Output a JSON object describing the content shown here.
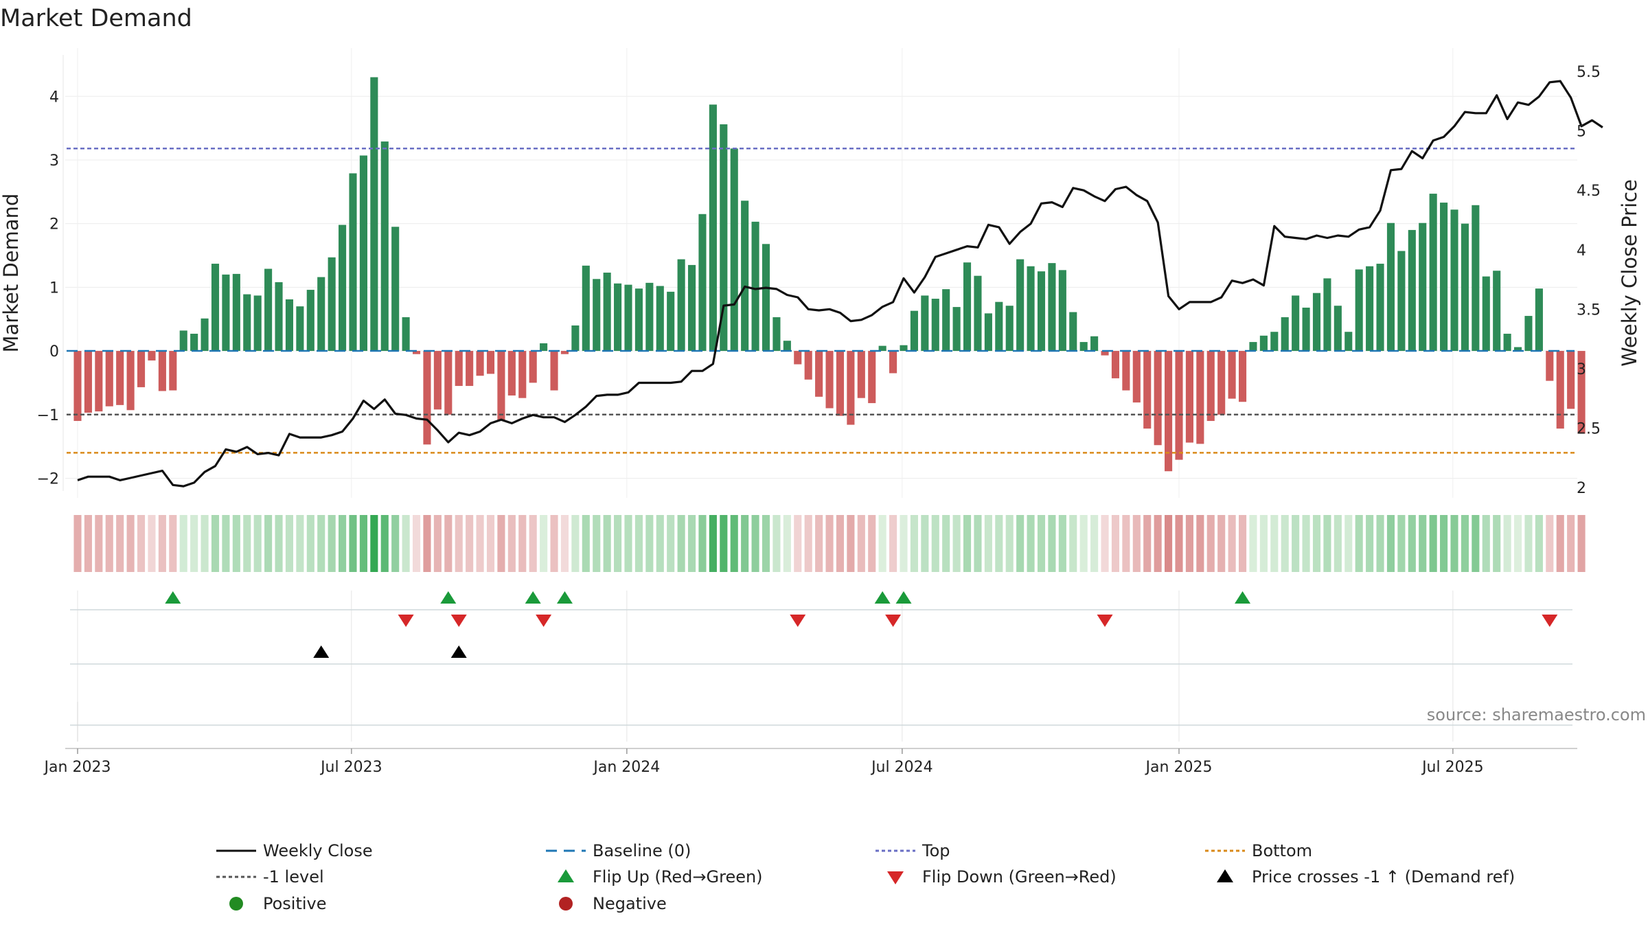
{
  "chart_data": {
    "type": "bar",
    "title": "Market Demand",
    "ylabel": "Market Demand",
    "y2label": "Weekly Close Price",
    "ylim": [
      -2.2,
      4.65
    ],
    "y2lim": [
      1.97,
      5.64
    ],
    "yticks": [
      -2,
      -1,
      0,
      1,
      2,
      3,
      4
    ],
    "y2ticks": [
      2,
      2.5,
      3,
      3.5,
      4,
      4.5,
      5,
      5.5
    ],
    "x_tick_labels": [
      "Jan 2023",
      "Jul 2023",
      "Jan 2024",
      "Jul 2024",
      "Jan 2025",
      "Jul 2025"
    ],
    "x_tick_weeks": [
      0,
      25.86,
      51.86,
      77.86,
      104,
      129.86
    ],
    "levels": {
      "top": 3.18,
      "minus_one": -1.0,
      "bottom": -1.6,
      "baseline": 0
    },
    "series": [
      {
        "name": "Market Demand",
        "kind": "bar",
        "values": [
          -1.1,
          -0.97,
          -0.95,
          -0.87,
          -0.85,
          -0.93,
          -0.57,
          -0.15,
          -0.63,
          -0.62,
          0.32,
          0.27,
          0.51,
          1.37,
          1.2,
          1.21,
          0.89,
          0.87,
          1.29,
          1.08,
          0.81,
          0.7,
          0.96,
          1.16,
          1.47,
          1.98,
          2.79,
          3.07,
          4.3,
          3.29,
          1.95,
          0.53,
          -0.05,
          -1.47,
          -0.92,
          -1.0,
          -0.55,
          -0.55,
          -0.39,
          -0.36,
          -1.09,
          -0.7,
          -0.74,
          -0.5,
          0.12,
          -0.62,
          -0.05,
          0.4,
          1.34,
          1.13,
          1.23,
          1.06,
          1.04,
          0.98,
          1.07,
          1.02,
          0.93,
          1.44,
          1.35,
          2.15,
          3.87,
          3.56,
          3.18,
          2.36,
          2.03,
          1.68,
          0.53,
          0.16,
          -0.21,
          -0.45,
          -0.72,
          -0.9,
          -1.02,
          -1.16,
          -0.74,
          -0.82,
          0.08,
          -0.35,
          0.09,
          0.63,
          0.87,
          0.82,
          0.97,
          0.69,
          1.39,
          1.18,
          0.59,
          0.77,
          0.71,
          1.44,
          1.33,
          1.25,
          1.38,
          1.27,
          0.61,
          0.14,
          0.23,
          -0.07,
          -0.43,
          -0.62,
          -0.81,
          -1.22,
          -1.48,
          -1.89,
          -1.71,
          -1.44,
          -1.46,
          -1.1,
          -1.0,
          -0.75,
          -0.8,
          0.14,
          0.24,
          0.3,
          0.53,
          0.87,
          0.68,
          0.91,
          1.14,
          0.71,
          0.3,
          1.28,
          1.33,
          1.37,
          2.01,
          1.57,
          1.9,
          2.01,
          2.47,
          2.33,
          2.22,
          2.0,
          2.29,
          1.17,
          1.26,
          0.27,
          0.06,
          0.55,
          0.98,
          -0.47,
          -1.22,
          -0.91,
          -1.3
        ]
      },
      {
        "name": "Weekly Close",
        "kind": "line",
        "axis": "right",
        "values": [
          2.06,
          2.09,
          2.09,
          2.09,
          2.06,
          2.08,
          2.1,
          2.12,
          2.14,
          2.02,
          2.01,
          2.04,
          2.13,
          2.18,
          2.32,
          2.3,
          2.34,
          2.28,
          2.29,
          2.27,
          2.45,
          2.42,
          2.42,
          2.42,
          2.44,
          2.47,
          2.58,
          2.73,
          2.66,
          2.74,
          2.62,
          2.61,
          2.58,
          2.57,
          2.48,
          2.38,
          2.46,
          2.44,
          2.47,
          2.54,
          2.57,
          2.54,
          2.58,
          2.61,
          2.59,
          2.59,
          2.55,
          2.61,
          2.68,
          2.77,
          2.78,
          2.78,
          2.8,
          2.88,
          2.88,
          2.88,
          2.88,
          2.89,
          2.98,
          2.98,
          3.04,
          3.53,
          3.54,
          3.69,
          3.67,
          3.68,
          3.67,
          3.62,
          3.6,
          3.5,
          3.49,
          3.5,
          3.47,
          3.4,
          3.41,
          3.45,
          3.52,
          3.56,
          3.76,
          3.64,
          3.77,
          3.94,
          3.97,
          4.0,
          4.03,
          4.02,
          4.21,
          4.19,
          4.05,
          4.15,
          4.22,
          4.39,
          4.4,
          4.36,
          4.52,
          4.5,
          4.45,
          4.41,
          4.51,
          4.53,
          4.46,
          4.41,
          4.23,
          3.61,
          3.5,
          3.56,
          3.56,
          3.56,
          3.6,
          3.74,
          3.72,
          3.75,
          3.7,
          4.2,
          4.11,
          4.1,
          4.09,
          4.12,
          4.1,
          4.12,
          4.11,
          4.17,
          4.19,
          4.33,
          4.67,
          4.68,
          4.83,
          4.77,
          4.92,
          4.95,
          5.04,
          5.16,
          5.15,
          5.15,
          5.3,
          5.1,
          5.24,
          5.22,
          5.29,
          5.41,
          5.42,
          5.28,
          5.04,
          5.09,
          5.03
        ]
      }
    ],
    "flip_up_weeks": [
      9,
      35,
      43,
      46,
      76,
      78,
      110
    ],
    "flip_down_weeks": [
      31,
      36,
      44,
      68,
      77,
      97,
      139
    ],
    "price_cross_weeks": [
      23,
      36
    ],
    "legend": [
      {
        "label": "Weekly Close",
        "symbol": "line",
        "color": "#111111"
      },
      {
        "label": "Baseline (0)",
        "symbol": "dash-long",
        "color": "#1f77b4"
      },
      {
        "label": "Top",
        "symbol": "dash-short",
        "color": "#6a6fc4"
      },
      {
        "label": "Bottom",
        "symbol": "dash-short",
        "color": "#d98a1a"
      },
      {
        "label": "-1 level",
        "symbol": "dash-short",
        "color": "#555555"
      },
      {
        "label": "Flip Up (Red→Green)",
        "symbol": "triangle-up",
        "color": "#1a9a3a"
      },
      {
        "label": "Flip Down (Green→Red)",
        "symbol": "triangle-down",
        "color": "#d62728"
      },
      {
        "label": "Price crosses -1 ↑ (Demand ref)",
        "symbol": "triangle-up",
        "color": "#000000"
      },
      {
        "label": "Positive",
        "symbol": "dot",
        "color": "#228b22"
      },
      {
        "label": "Negative",
        "symbol": "dot",
        "color": "#b22222"
      }
    ],
    "source": "source: sharemaestro.com"
  },
  "colors": {
    "positive_bar": "#2e8b57",
    "negative_bar": "#cd5c5c",
    "price_line": "#111111"
  }
}
